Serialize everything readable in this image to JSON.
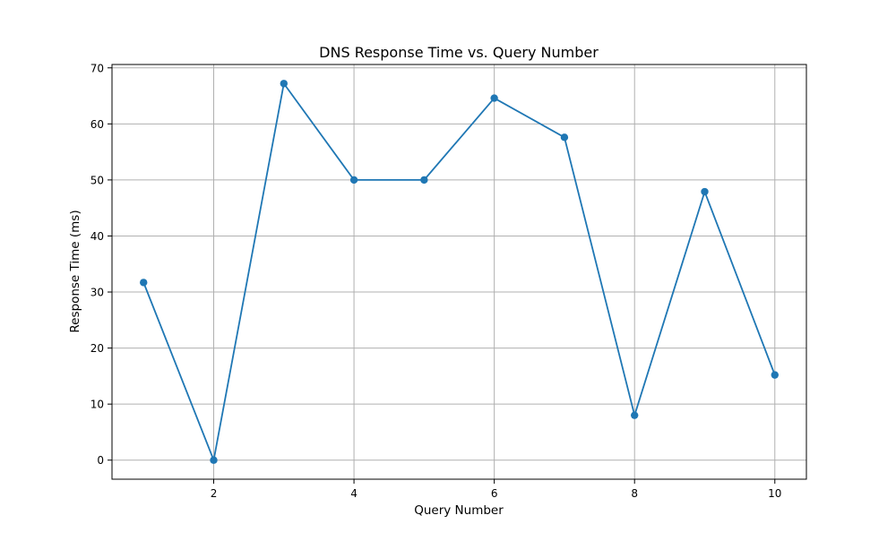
{
  "chart_data": {
    "type": "line",
    "title": "DNS Response Time vs. Query Number",
    "xlabel": "Query Number",
    "ylabel": "Response Time (ms)",
    "x": [
      1,
      2,
      3,
      4,
      5,
      6,
      7,
      8,
      9,
      10
    ],
    "series": [
      {
        "values": [
          31.7,
          0,
          67.2,
          50,
          50,
          64.6,
          57.6,
          8,
          47.9,
          15.2
        ]
      }
    ],
    "xlim": [
      0.55,
      10.45
    ],
    "ylim": [
      -3.4,
      70.6
    ],
    "x_ticks": [
      2,
      4,
      6,
      8,
      10
    ],
    "y_ticks": [
      0,
      10,
      20,
      30,
      40,
      50,
      60,
      70
    ],
    "grid": true,
    "colors": {
      "line": "#1f77b4",
      "grid": "#b0b0b0",
      "axis": "#000000"
    }
  }
}
